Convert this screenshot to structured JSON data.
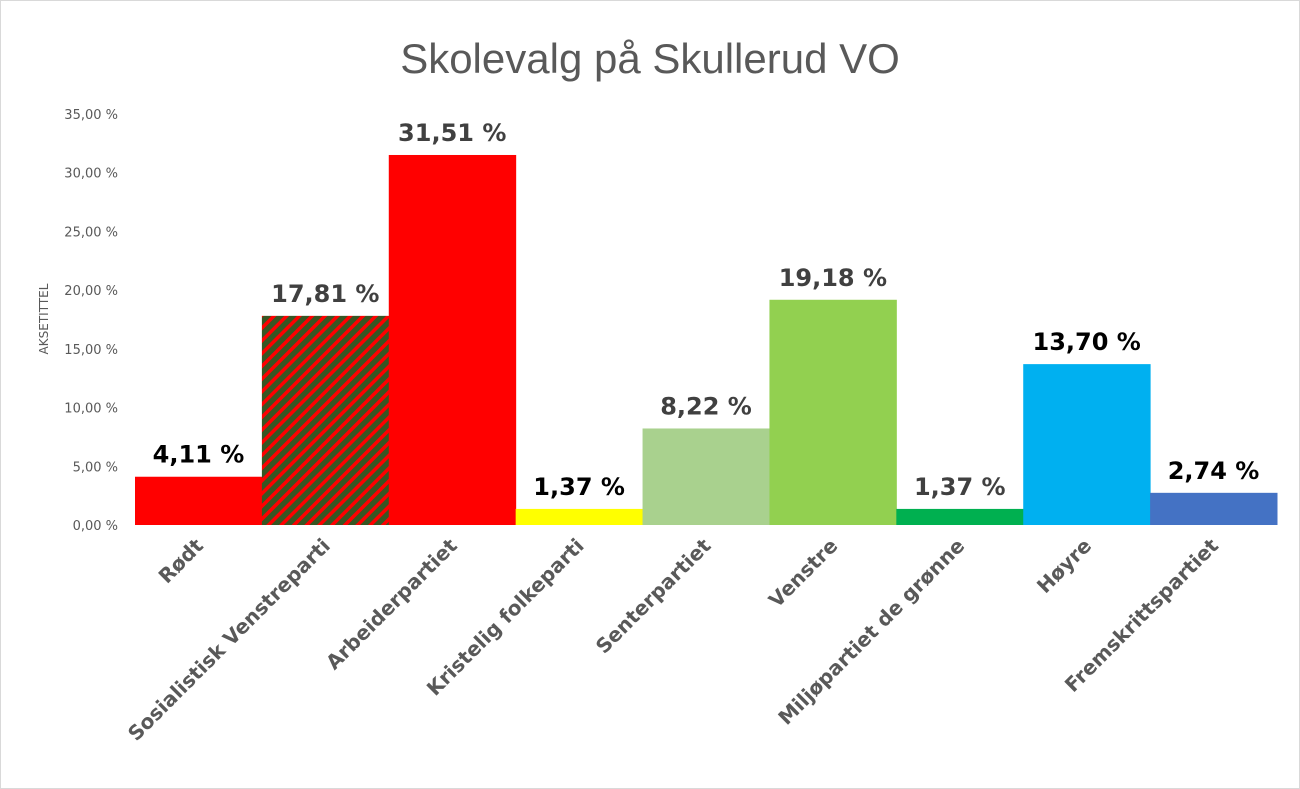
{
  "chart_data": {
    "type": "bar",
    "title": "Skolevalg på Skullerud VO",
    "ylabel": "AKSETITTEL",
    "xlabel": "",
    "ylim": [
      0,
      35
    ],
    "yticks": [
      "0,00 %",
      "5,00 %",
      "10,00 %",
      "15,00 %",
      "20,00 %",
      "25,00 %",
      "30,00 %",
      "35,00 %"
    ],
    "grid": false,
    "legend": "none",
    "categories": [
      "Rødt",
      "Sosialistisk Venstreparti",
      "Arbeiderpartiet",
      "Kristelig folkeparti",
      "Senterpartiet",
      "Venstre",
      "Miljøpartiet de grønne",
      "Høyre",
      "Fremskrittspartiet"
    ],
    "values": [
      4.11,
      17.81,
      31.51,
      1.37,
      8.22,
      19.18,
      1.37,
      13.7,
      2.74
    ],
    "data_labels": [
      "4,11 %",
      "17,81 %",
      "31,51 %",
      "1,37 %",
      "8,22 %",
      "19,18 %",
      "1,37 %",
      "13,70 %",
      "2,74 %"
    ],
    "colors": [
      "#FF0000",
      "striped:#FF0000/#375623",
      "#FF0000",
      "#FFFF00",
      "#A9D18E",
      "#92D050",
      "#00B050",
      "#00B0F0",
      "#4472C4"
    ],
    "label_colors": [
      "#000000",
      "#404040",
      "#404040",
      "#000000",
      "#404040",
      "#404040",
      "#404040",
      "#000000",
      "#000000"
    ]
  }
}
